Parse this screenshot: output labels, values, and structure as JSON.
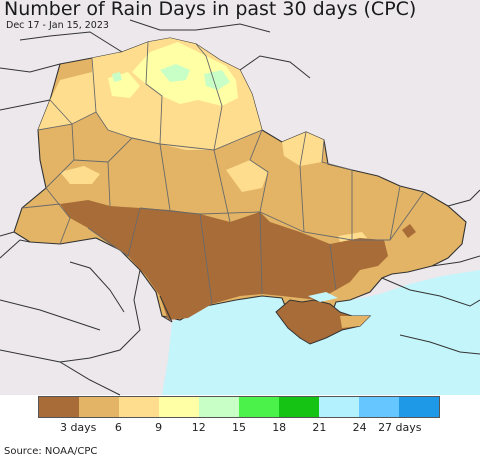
{
  "title": "Number of Rain Days in past 30 days (CPC)",
  "subtitle": "Dec 17 - Jan 15, 2023",
  "source": "Source: NOAA/CPC",
  "legend": {
    "colors": [
      "#a86c38",
      "#e3b465",
      "#ffdd8f",
      "#ffffa6",
      "#c7ffc7",
      "#4af24a",
      "#14c314",
      "#b3f1ff",
      "#66c6ff",
      "#1d99e8"
    ],
    "ticks": [
      "3 days",
      "6",
      "9",
      "12",
      "15",
      "18",
      "21",
      "24",
      "27 days"
    ]
  },
  "colors": {
    "sea": "#c4f5fb",
    "outside_land": "#ece8ec",
    "border": "#333333"
  }
}
